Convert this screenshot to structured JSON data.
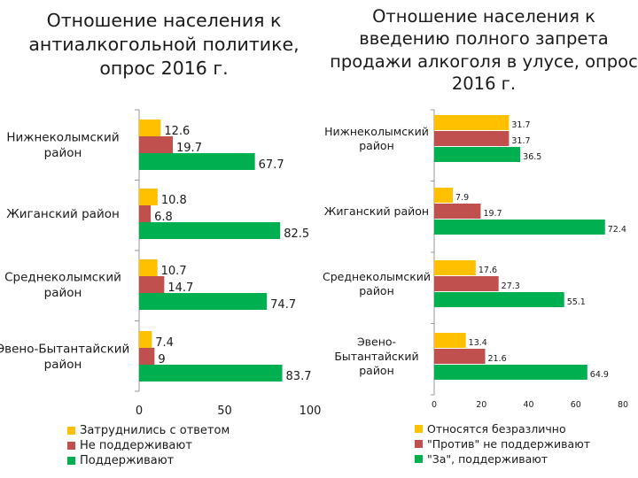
{
  "colors": {
    "neutral": "#FFC000",
    "against": "#C0504D",
    "support": "#00B050",
    "axis": "#999999"
  },
  "chart_data": [
    {
      "type": "bar",
      "orientation": "horizontal",
      "title": "Отношение населения к антиалкогольной политике, опрос 2016 г.",
      "categories": [
        "Нижнеколымский район",
        "Жиганский район",
        "Среднеколымский район",
        "Эвено-Бытантайский район"
      ],
      "series": [
        {
          "name": "Затруднились с ответом",
          "color_key": "neutral",
          "values": [
            12.6,
            10.8,
            10.7,
            7.4
          ]
        },
        {
          "name": "Не поддерживают",
          "color_key": "against",
          "values": [
            19.7,
            6.8,
            14.7,
            9
          ]
        },
        {
          "name": "Поддерживают",
          "color_key": "support",
          "values": [
            67.7,
            82.5,
            74.7,
            83.7
          ]
        }
      ],
      "xlim": [
        0,
        100
      ],
      "xticks": [
        0,
        50,
        100
      ],
      "legend": "bottom",
      "grid": false
    },
    {
      "type": "bar",
      "orientation": "horizontal",
      "title": "Отношение населения к введению полного запрета продажи алкоголя в улусе, опрос 2016 г.",
      "categories": [
        "Нижнеколымский район",
        "Жиганский район",
        "Среднеколымский район",
        "Эвено-Бытантайский район"
      ],
      "series": [
        {
          "name": "Относятся безразлично",
          "color_key": "neutral",
          "values": [
            31.7,
            7.9,
            17.6,
            13.4
          ]
        },
        {
          "name": "\"Против\" не поддерживают",
          "color_key": "against",
          "values": [
            31.7,
            19.7,
            27.3,
            21.6
          ]
        },
        {
          "name": "\"За\", поддерживают",
          "color_key": "support",
          "values": [
            36.5,
            72.4,
            55.1,
            64.9
          ]
        }
      ],
      "xlim": [
        0,
        80
      ],
      "xticks": [
        0,
        20,
        40,
        60,
        80
      ],
      "legend": "bottom",
      "grid": false
    }
  ]
}
